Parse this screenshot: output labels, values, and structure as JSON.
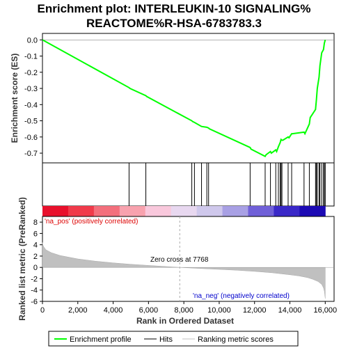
{
  "chart_data": {
    "type": "line",
    "title": "Enrichment plot: INTERLEUKIN-10 SIGNALING%\nREACTOME%R-HSA-6783783.3",
    "xlabel": "Rank in Ordered Dataset",
    "ylabel_top": "Enrichment score (ES)",
    "ylabel_bottom": "Ranked list metric (PreRanked)",
    "xlim": [
      0,
      16500
    ],
    "es_ylim": [
      -0.76,
      0.04
    ],
    "metric_ylim": [
      -6,
      9
    ],
    "x_ticks": [
      0,
      2000,
      4000,
      6000,
      8000,
      10000,
      12000,
      14000,
      16000
    ],
    "x_tick_labels": [
      "0",
      "2,000",
      "4,000",
      "6,000",
      "8,000",
      "10,000",
      "12,000",
      "14,000",
      "16,000"
    ],
    "es_ticks": [
      0.0,
      -0.1,
      -0.2,
      -0.3,
      -0.4,
      -0.5,
      -0.6,
      -0.7
    ],
    "es_tick_labels": [
      "0.0",
      "-0.1",
      "-0.2",
      "-0.3",
      "-0.4",
      "-0.5",
      "-0.6",
      "-0.7"
    ],
    "metric_ticks": [
      8,
      6,
      4,
      2,
      0,
      -2,
      -4,
      -6
    ],
    "metric_tick_labels": [
      "8",
      "6",
      "4",
      "2",
      "0",
      "-2",
      "-4",
      "-6"
    ],
    "hits": [
      4900,
      5850,
      8450,
      8600,
      9000,
      9300,
      9400,
      11750,
      12600,
      12900,
      13200,
      13350,
      13450,
      13500,
      13550,
      13900,
      14100,
      14800,
      15100,
      15450,
      15500,
      15550,
      15650,
      15700,
      15800,
      15900,
      15950,
      16000
    ],
    "series": [
      {
        "name": "Enrichment profile",
        "color": "#00ff00",
        "x": [
          0,
          4900,
          4950,
          5850,
          5900,
          8450,
          8500,
          8600,
          9000,
          9300,
          9400,
          9450,
          11750,
          11800,
          12600,
          12650,
          12900,
          12950,
          13200,
          13250,
          13350,
          13450,
          13500,
          13550,
          13600,
          13900,
          13950,
          14100,
          14150,
          14800,
          14850,
          15100,
          15150,
          15450,
          15500,
          15550,
          15650,
          15700,
          15800,
          15900,
          15950,
          16000
        ],
        "y": [
          0.0,
          -0.295,
          -0.3,
          -0.345,
          -0.35,
          -0.5,
          -0.505,
          -0.51,
          -0.535,
          -0.54,
          -0.545,
          -0.55,
          -0.665,
          -0.675,
          -0.72,
          -0.71,
          -0.69,
          -0.7,
          -0.68,
          -0.69,
          -0.66,
          -0.635,
          -0.615,
          -0.62,
          -0.62,
          -0.6,
          -0.605,
          -0.58,
          -0.58,
          -0.57,
          -0.58,
          -0.52,
          -0.48,
          -0.43,
          -0.37,
          -0.3,
          -0.23,
          -0.16,
          -0.08,
          -0.06,
          -0.02,
          0.0
        ]
      },
      {
        "name": "Hits",
        "color": "#000000"
      },
      {
        "name": "Ranking metric scores",
        "color": "#c0c0c0"
      }
    ],
    "metric_profile": {
      "x": [
        0,
        20,
        80,
        200,
        500,
        1000,
        2000,
        3000,
        4000,
        5000,
        6000,
        7000,
        7768,
        9000,
        10000,
        11000,
        12000,
        13000,
        14000,
        14500,
        15000,
        15300,
        15600,
        15800,
        15900,
        15950,
        16000
      ],
      "y": [
        4.4,
        4.0,
        3.6,
        3.1,
        2.6,
        2.1,
        1.5,
        1.1,
        0.8,
        0.55,
        0.35,
        0.15,
        0.0,
        -0.2,
        -0.35,
        -0.5,
        -0.7,
        -0.95,
        -1.3,
        -1.5,
        -1.8,
        -2.1,
        -2.5,
        -3.0,
        -3.6,
        -4.2,
        -5.5
      ]
    },
    "zero_cross": 7768,
    "annotations": {
      "pos_label": "'na_pos' (positively correlated)",
      "neg_label": "'na_neg' (negatively correlated)",
      "zero_cross_label": "Zero cross at 7768"
    },
    "heatmap_colors": [
      "#e8102c",
      "#f03a4a",
      "#f36f7c",
      "#f8a2ae",
      "#f9c8dc",
      "#e8d8f0",
      "#cfc8ec",
      "#a8a0e4",
      "#7060d8",
      "#3a28c8",
      "#1c0ab4"
    ],
    "legend_position": "bottom"
  }
}
